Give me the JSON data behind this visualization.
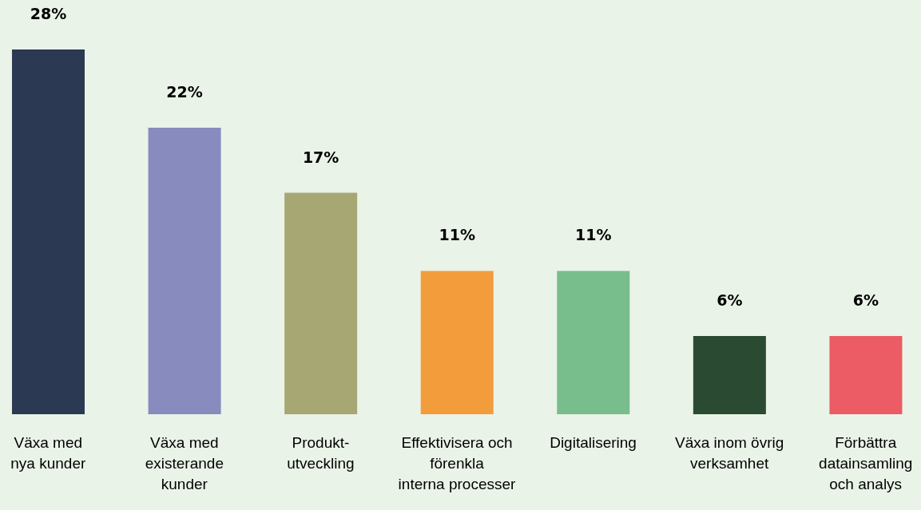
{
  "chart_data": {
    "type": "bar",
    "categories": [
      "Växa med\nnya kunder",
      "Växa med\nexisterande\nkunder",
      "Produkt-\nutveckling",
      "Effektivisera och\nförenkla\ninterna processer",
      "Digitalisering",
      "Växa inom övrig\nverksamhet",
      "Förbättra\ndatainsamling\noch analys"
    ],
    "values": [
      28,
      22,
      17,
      11,
      11,
      6,
      6
    ],
    "colors": [
      "#2b3a52",
      "#878bbd",
      "#a7a774",
      "#f29c3b",
      "#78be8c",
      "#2a4b31",
      "#eb5c65"
    ],
    "value_labels": [
      "28%",
      "22%",
      "17%",
      "11%",
      "11%",
      "6%",
      "6%"
    ],
    "grid": false,
    "legend": false
  }
}
